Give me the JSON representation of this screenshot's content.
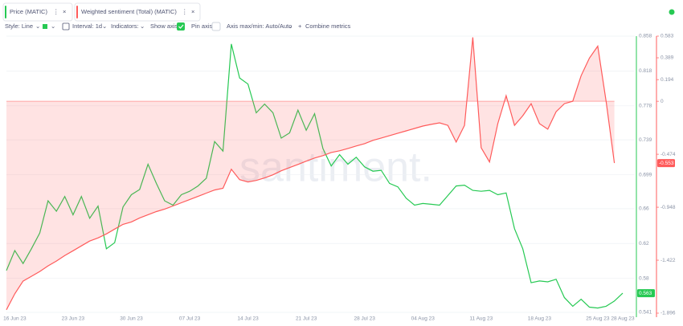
{
  "toolbar": {
    "style": "Style: Line",
    "interval": "Interval: 1d",
    "indicators": "Indicators:",
    "show_axis": "Show axis",
    "pin_axis": "Pin axis",
    "axis_minmax": "Axis max/min: Auto/Auto",
    "combine": "Combine metrics"
  },
  "chart_data": {
    "type": "line",
    "watermark": "santiment.",
    "categories": [
      null,
      "16 Jun 23",
      null,
      null,
      null,
      null,
      null,
      null,
      "23 Jun 23",
      null,
      null,
      null,
      null,
      null,
      null,
      "30 Jun 23",
      null,
      null,
      null,
      null,
      null,
      null,
      "07 Jul 23",
      null,
      null,
      null,
      null,
      null,
      null,
      "14 Jul 23",
      null,
      null,
      null,
      null,
      null,
      null,
      "21 Jul 23",
      null,
      null,
      null,
      null,
      null,
      null,
      "28 Jul 23",
      null,
      null,
      null,
      null,
      null,
      null,
      "04 Aug 23",
      null,
      null,
      null,
      null,
      null,
      null,
      "11 Aug 23",
      null,
      null,
      null,
      null,
      null,
      null,
      "18 Aug 23",
      null,
      null,
      null,
      null,
      null,
      null,
      "25 Aug 23",
      null,
      null,
      "28 Aug 23"
    ],
    "series": [
      {
        "name": "Price (MATIC)",
        "color": "#26c953",
        "values": [
          0.589,
          0.612,
          0.597,
          0.614,
          0.632,
          0.669,
          0.657,
          0.674,
          0.653,
          0.674,
          0.649,
          0.663,
          0.614,
          0.621,
          0.662,
          0.676,
          0.682,
          0.711,
          0.689,
          0.669,
          0.664,
          0.676,
          0.68,
          0.686,
          0.695,
          0.737,
          0.726,
          0.849,
          0.81,
          0.803,
          0.77,
          0.78,
          0.77,
          0.741,
          0.747,
          0.773,
          0.75,
          0.769,
          0.729,
          0.709,
          0.722,
          0.711,
          0.719,
          0.708,
          0.703,
          0.704,
          0.689,
          0.685,
          0.672,
          0.664,
          0.666,
          0.665,
          0.664,
          0.675,
          0.686,
          0.687,
          0.681,
          0.68,
          0.681,
          0.676,
          0.678,
          0.637,
          0.614,
          0.575,
          0.577,
          0.576,
          0.579,
          0.558,
          0.548,
          0.556,
          0.547,
          0.546,
          0.548,
          0.554,
          0.563
        ]
      },
      {
        "name": "Weighted sentiment (Total) (MATIC)",
        "color": "#ff5b5b",
        "axis": "y2",
        "area": true,
        "values": [
          -1.866,
          -1.723,
          -1.609,
          -1.566,
          -1.523,
          -1.473,
          -1.43,
          -1.38,
          -1.338,
          -1.294,
          -1.251,
          -1.223,
          -1.187,
          -1.144,
          -1.101,
          -1.08,
          -1.044,
          -1.015,
          -0.987,
          -0.965,
          -0.937,
          -0.908,
          -0.88,
          -0.851,
          -0.822,
          -0.794,
          -0.779,
          -0.608,
          -0.701,
          -0.722,
          -0.708,
          -0.686,
          -0.658,
          -0.622,
          -0.593,
          -0.565,
          -0.536,
          -0.508,
          -0.486,
          -0.458,
          -0.443,
          -0.422,
          -0.4,
          -0.379,
          -0.35,
          -0.329,
          -0.307,
          -0.286,
          -0.265,
          -0.243,
          -0.222,
          -0.207,
          -0.193,
          -0.215,
          -0.365,
          -0.215,
          0.572,
          -0.415,
          -0.543,
          -0.2,
          0.05,
          -0.215,
          -0.129,
          -0.021,
          -0.2,
          -0.25,
          -0.093,
          -0.021,
          0,
          0.229,
          0.386,
          0.493,
          0,
          -0.553,
          null
        ]
      }
    ],
    "ylim": [
      0.541,
      0.858
    ],
    "yticks": [
      0.858,
      0.818,
      0.778,
      0.739,
      0.699,
      0.66,
      0.62,
      0.58,
      0.541
    ],
    "y2lim": [
      -1.896,
      0.583
    ],
    "y2ticks": [
      0.583,
      0.389,
      0.194,
      0,
      -0.474,
      -0.948,
      -1.422,
      -1.896
    ],
    "grid": true
  }
}
